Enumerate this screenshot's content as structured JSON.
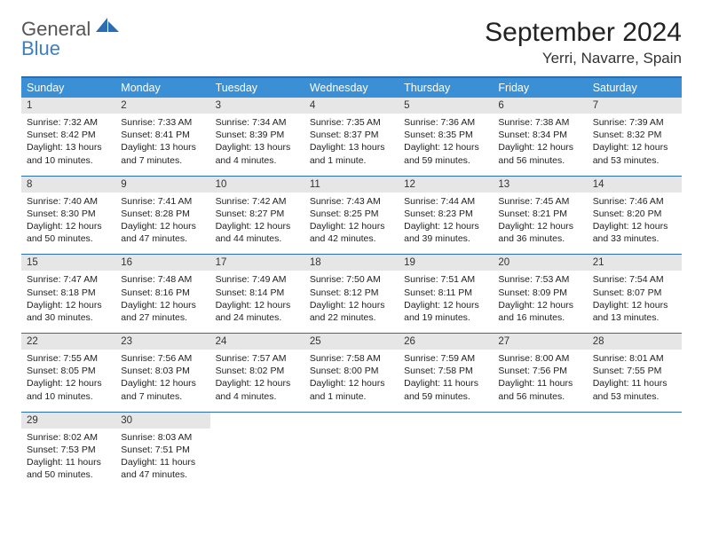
{
  "logo": {
    "line1": "General",
    "line2": "Blue"
  },
  "title": "September 2024",
  "location": "Yerri, Navarre, Spain",
  "colors": {
    "header_bg": "#3b8fd4",
    "header_text": "#ffffff",
    "border": "#2a6db4",
    "daynum_bg": "#e6e6e6",
    "logo_gray": "#555555",
    "logo_blue": "#3b7fc4"
  },
  "dow": [
    "Sunday",
    "Monday",
    "Tuesday",
    "Wednesday",
    "Thursday",
    "Friday",
    "Saturday"
  ],
  "weeks": [
    [
      {
        "n": "1",
        "sr": "Sunrise: 7:32 AM",
        "ss": "Sunset: 8:42 PM",
        "dl": "Daylight: 13 hours and 10 minutes."
      },
      {
        "n": "2",
        "sr": "Sunrise: 7:33 AM",
        "ss": "Sunset: 8:41 PM",
        "dl": "Daylight: 13 hours and 7 minutes."
      },
      {
        "n": "3",
        "sr": "Sunrise: 7:34 AM",
        "ss": "Sunset: 8:39 PM",
        "dl": "Daylight: 13 hours and 4 minutes."
      },
      {
        "n": "4",
        "sr": "Sunrise: 7:35 AM",
        "ss": "Sunset: 8:37 PM",
        "dl": "Daylight: 13 hours and 1 minute."
      },
      {
        "n": "5",
        "sr": "Sunrise: 7:36 AM",
        "ss": "Sunset: 8:35 PM",
        "dl": "Daylight: 12 hours and 59 minutes."
      },
      {
        "n": "6",
        "sr": "Sunrise: 7:38 AM",
        "ss": "Sunset: 8:34 PM",
        "dl": "Daylight: 12 hours and 56 minutes."
      },
      {
        "n": "7",
        "sr": "Sunrise: 7:39 AM",
        "ss": "Sunset: 8:32 PM",
        "dl": "Daylight: 12 hours and 53 minutes."
      }
    ],
    [
      {
        "n": "8",
        "sr": "Sunrise: 7:40 AM",
        "ss": "Sunset: 8:30 PM",
        "dl": "Daylight: 12 hours and 50 minutes."
      },
      {
        "n": "9",
        "sr": "Sunrise: 7:41 AM",
        "ss": "Sunset: 8:28 PM",
        "dl": "Daylight: 12 hours and 47 minutes."
      },
      {
        "n": "10",
        "sr": "Sunrise: 7:42 AM",
        "ss": "Sunset: 8:27 PM",
        "dl": "Daylight: 12 hours and 44 minutes."
      },
      {
        "n": "11",
        "sr": "Sunrise: 7:43 AM",
        "ss": "Sunset: 8:25 PM",
        "dl": "Daylight: 12 hours and 42 minutes."
      },
      {
        "n": "12",
        "sr": "Sunrise: 7:44 AM",
        "ss": "Sunset: 8:23 PM",
        "dl": "Daylight: 12 hours and 39 minutes."
      },
      {
        "n": "13",
        "sr": "Sunrise: 7:45 AM",
        "ss": "Sunset: 8:21 PM",
        "dl": "Daylight: 12 hours and 36 minutes."
      },
      {
        "n": "14",
        "sr": "Sunrise: 7:46 AM",
        "ss": "Sunset: 8:20 PM",
        "dl": "Daylight: 12 hours and 33 minutes."
      }
    ],
    [
      {
        "n": "15",
        "sr": "Sunrise: 7:47 AM",
        "ss": "Sunset: 8:18 PM",
        "dl": "Daylight: 12 hours and 30 minutes."
      },
      {
        "n": "16",
        "sr": "Sunrise: 7:48 AM",
        "ss": "Sunset: 8:16 PM",
        "dl": "Daylight: 12 hours and 27 minutes."
      },
      {
        "n": "17",
        "sr": "Sunrise: 7:49 AM",
        "ss": "Sunset: 8:14 PM",
        "dl": "Daylight: 12 hours and 24 minutes."
      },
      {
        "n": "18",
        "sr": "Sunrise: 7:50 AM",
        "ss": "Sunset: 8:12 PM",
        "dl": "Daylight: 12 hours and 22 minutes."
      },
      {
        "n": "19",
        "sr": "Sunrise: 7:51 AM",
        "ss": "Sunset: 8:11 PM",
        "dl": "Daylight: 12 hours and 19 minutes."
      },
      {
        "n": "20",
        "sr": "Sunrise: 7:53 AM",
        "ss": "Sunset: 8:09 PM",
        "dl": "Daylight: 12 hours and 16 minutes."
      },
      {
        "n": "21",
        "sr": "Sunrise: 7:54 AM",
        "ss": "Sunset: 8:07 PM",
        "dl": "Daylight: 12 hours and 13 minutes."
      }
    ],
    [
      {
        "n": "22",
        "sr": "Sunrise: 7:55 AM",
        "ss": "Sunset: 8:05 PM",
        "dl": "Daylight: 12 hours and 10 minutes."
      },
      {
        "n": "23",
        "sr": "Sunrise: 7:56 AM",
        "ss": "Sunset: 8:03 PM",
        "dl": "Daylight: 12 hours and 7 minutes."
      },
      {
        "n": "24",
        "sr": "Sunrise: 7:57 AM",
        "ss": "Sunset: 8:02 PM",
        "dl": "Daylight: 12 hours and 4 minutes."
      },
      {
        "n": "25",
        "sr": "Sunrise: 7:58 AM",
        "ss": "Sunset: 8:00 PM",
        "dl": "Daylight: 12 hours and 1 minute."
      },
      {
        "n": "26",
        "sr": "Sunrise: 7:59 AM",
        "ss": "Sunset: 7:58 PM",
        "dl": "Daylight: 11 hours and 59 minutes."
      },
      {
        "n": "27",
        "sr": "Sunrise: 8:00 AM",
        "ss": "Sunset: 7:56 PM",
        "dl": "Daylight: 11 hours and 56 minutes."
      },
      {
        "n": "28",
        "sr": "Sunrise: 8:01 AM",
        "ss": "Sunset: 7:55 PM",
        "dl": "Daylight: 11 hours and 53 minutes."
      }
    ],
    [
      {
        "n": "29",
        "sr": "Sunrise: 8:02 AM",
        "ss": "Sunset: 7:53 PM",
        "dl": "Daylight: 11 hours and 50 minutes."
      },
      {
        "n": "30",
        "sr": "Sunrise: 8:03 AM",
        "ss": "Sunset: 7:51 PM",
        "dl": "Daylight: 11 hours and 47 minutes."
      },
      null,
      null,
      null,
      null,
      null
    ]
  ]
}
